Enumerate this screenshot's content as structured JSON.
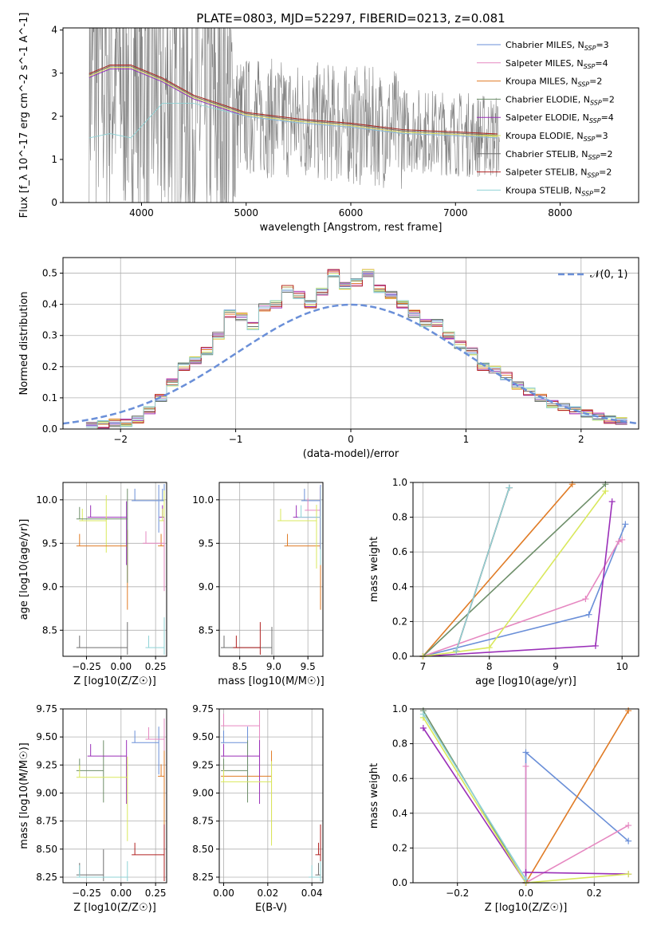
{
  "colors": [
    "#6a8fd8",
    "#e688c1",
    "#e07b25",
    "#6e8f6a",
    "#9a2fb8",
    "#d9e85c",
    "#6f6f6f",
    "#b22222",
    "#8fd3d6"
  ],
  "series_names": [
    "Chabrier MILES, N_SSP=3",
    "Salpeter MILES, N_SSP=4",
    "Kroupa MILES, N_SSP=2",
    "Chabrier ELODIE, N_SSP=2",
    "Salpeter ELODIE, N_SSP=4",
    "Kroupa ELODIE, N_SSP=3",
    "Chabrier STELIB, N_SSP=2",
    "Salpeter STELIB, N_SSP=2",
    "Kroupa STELIB, N_SSP=2"
  ],
  "chart_data": [
    {
      "id": "spectrum",
      "type": "line",
      "title": "PLATE=0803, MJD=52297, FIBERID=0213, z=0.081",
      "xlabel": "wavelength [Angstrom, rest frame]",
      "ylabel": "Flux [f_λ 10^-17 erg cm^-2 s^-1 A^-1]",
      "xlim": [
        3250,
        8750
      ],
      "ylim": [
        0,
        4.05
      ],
      "xticks": [
        4000,
        5000,
        6000,
        7000,
        8000
      ],
      "yticks": [
        0,
        1,
        2,
        3,
        4
      ],
      "legend": "top-right",
      "series": [
        {
          "name": "Chabrier MILES, N_SSP=3",
          "x": [
            3500,
            3700,
            3900,
            4200,
            4500,
            5000,
            5500,
            6000,
            6500,
            7000,
            7400
          ],
          "y": [
            2.9,
            3.1,
            3.1,
            2.8,
            2.4,
            2.0,
            1.85,
            1.75,
            1.6,
            1.55,
            1.5
          ]
        },
        {
          "name": "Kroupa STELIB, N_SSP=2",
          "x": [
            3500,
            3700,
            3900,
            4200,
            4500,
            5000,
            5500,
            6000,
            6500,
            7000,
            7400
          ],
          "y": [
            1.5,
            1.6,
            1.5,
            2.3,
            2.3,
            2.0,
            1.85,
            1.75,
            1.6,
            1.55,
            1.5
          ]
        }
      ]
    },
    {
      "id": "residuals",
      "type": "bar",
      "xlabel": "(data-model)/error",
      "ylabel": "Normed distribution",
      "xlim": [
        -2.5,
        2.5
      ],
      "ylim": [
        0,
        0.55
      ],
      "xticks": [
        -2,
        -1,
        0,
        1,
        2
      ],
      "yticks": [
        0.0,
        0.1,
        0.2,
        0.3,
        0.4,
        0.5
      ],
      "legend": "top-right",
      "reference_curve": "N(0,1)",
      "bin_edges_start": -2.3,
      "bin_width": 0.1,
      "values": [
        0.01,
        0.015,
        0.02,
        0.02,
        0.03,
        0.06,
        0.1,
        0.15,
        0.2,
        0.22,
        0.25,
        0.3,
        0.37,
        0.36,
        0.33,
        0.39,
        0.4,
        0.45,
        0.43,
        0.4,
        0.44,
        0.5,
        0.46,
        0.47,
        0.5,
        0.45,
        0.43,
        0.4,
        0.37,
        0.34,
        0.34,
        0.3,
        0.27,
        0.25,
        0.2,
        0.19,
        0.17,
        0.14,
        0.12,
        0.1,
        0.08,
        0.07,
        0.06,
        0.05,
        0.04,
        0.03,
        0.025
      ]
    },
    {
      "id": "z-age",
      "type": "scatter",
      "xlabel": "Z [log10(Z/Z☉)]",
      "ylabel": "age [log10(age/yr)]",
      "xlim": [
        -0.42,
        0.33
      ],
      "ylim": [
        8.2,
        10.2
      ],
      "xticks": [
        -0.25,
        0.0,
        0.25
      ],
      "xticklabels": [
        "−0.25",
        "0.00",
        "0.25"
      ],
      "yticks": [
        8.5,
        9.0,
        9.5,
        10.0
      ],
      "points": [
        [
          0.1,
          9.99,
          0
        ],
        [
          0.3,
          9.99,
          0
        ],
        [
          -0.3,
          8.3,
          6
        ],
        [
          0.2,
          8.3,
          8
        ],
        [
          -0.22,
          9.8,
          4
        ],
        [
          0.3,
          9.8,
          4
        ],
        [
          -0.28,
          9.76,
          5
        ],
        [
          0.3,
          9.76,
          5
        ],
        [
          -0.3,
          9.47,
          2
        ],
        [
          0.29,
          9.47,
          2
        ],
        [
          0.18,
          9.5,
          1
        ],
        [
          -0.3,
          9.78,
          3
        ]
      ]
    },
    {
      "id": "mass-age",
      "type": "scatter",
      "xlabel": "mass [log10(M/M☉)]",
      "ylabel": "",
      "xlim": [
        8.2,
        9.72
      ],
      "ylim": [
        8.2,
        10.2
      ],
      "xticks": [
        8.5,
        9.0,
        9.5
      ],
      "xticklabels": [
        "8.5",
        "9.0",
        "9.5"
      ],
      "yticks": [
        8.5,
        9.0,
        9.5,
        10.0
      ],
      "points": [
        [
          9.45,
          9.99,
          0
        ],
        [
          9.5,
          9.88,
          1
        ],
        [
          9.2,
          9.47,
          2
        ],
        [
          9.33,
          9.8,
          4
        ],
        [
          9.1,
          9.76,
          5
        ],
        [
          8.27,
          8.3,
          6
        ],
        [
          8.45,
          8.3,
          7
        ],
        [
          9.4,
          9.8,
          8
        ]
      ]
    },
    {
      "id": "age-weight",
      "type": "line",
      "xlabel": "age [log10(age/yr)]",
      "ylabel": "mass weight",
      "xlim": [
        6.85,
        10.25
      ],
      "ylim": [
        0,
        1.0
      ],
      "xticks": [
        7,
        8,
        9,
        10
      ],
      "yticks": [
        0.0,
        0.2,
        0.4,
        0.6,
        0.8,
        1.0
      ],
      "series": [
        {
          "name": "Chabrier MILES",
          "x": [
            7.0,
            9.5,
            10.05
          ],
          "y": [
            0.0,
            0.24,
            0.76
          ]
        },
        {
          "name": "Salpeter MILES",
          "x": [
            7.0,
            9.45,
            9.95,
            10.0
          ],
          "y": [
            0.0,
            0.33,
            0.66,
            0.67
          ]
        },
        {
          "name": "Kroupa MILES",
          "x": [
            7.0,
            9.25
          ],
          "y": [
            0.0,
            0.99
          ]
        },
        {
          "name": "Chabrier ELODIE",
          "x": [
            7.0,
            9.75
          ],
          "y": [
            0.0,
            0.99
          ]
        },
        {
          "name": "Salpeter ELODIE",
          "x": [
            7.0,
            9.6,
            9.85
          ],
          "y": [
            0.0,
            0.06,
            0.89
          ]
        },
        {
          "name": "Kroupa ELODIE",
          "x": [
            7.0,
            8.0,
            9.75
          ],
          "y": [
            0.0,
            0.05,
            0.95
          ]
        },
        {
          "name": "Chabrier STELIB",
          "x": [
            7.5,
            8.3
          ],
          "y": [
            0.03,
            0.97
          ]
        },
        {
          "name": "Salpeter STELIB",
          "x": [
            7.5,
            8.3
          ],
          "y": [
            0.03,
            0.97
          ]
        },
        {
          "name": "Kroupa STELIB",
          "x": [
            7.5,
            8.3
          ],
          "y": [
            0.03,
            0.97
          ]
        }
      ]
    },
    {
      "id": "z-mass",
      "type": "scatter",
      "xlabel": "Z [log10(Z/Z☉)]",
      "ylabel": "mass [log10(M/M☉)]",
      "xlim": [
        -0.42,
        0.33
      ],
      "ylim": [
        8.2,
        9.75
      ],
      "xticks": [
        -0.25,
        0.0,
        0.25
      ],
      "xticklabels": [
        "−0.25",
        "0.00",
        "0.25"
      ],
      "yticks": [
        8.25,
        8.5,
        8.75,
        9.0,
        9.25,
        9.5,
        9.75
      ],
      "points": [
        [
          0.1,
          9.45,
          0
        ],
        [
          0.2,
          9.48,
          1
        ],
        [
          0.29,
          9.15,
          2
        ],
        [
          -0.3,
          9.2,
          3
        ],
        [
          -0.22,
          9.33,
          4
        ],
        [
          -0.3,
          9.14,
          5
        ],
        [
          -0.3,
          8.27,
          6
        ],
        [
          0.1,
          8.45,
          7
        ],
        [
          -0.3,
          8.25,
          8
        ]
      ]
    },
    {
      "id": "ebv-mass",
      "type": "scatter",
      "xlabel": "E(B-V)",
      "ylabel": "",
      "xlim": [
        -0.002,
        0.045
      ],
      "ylim": [
        8.2,
        9.75
      ],
      "xticks": [
        0.0,
        0.02,
        0.04
      ],
      "xticklabels": [
        "0.00",
        "0.02",
        "0.04"
      ],
      "yticks": [
        8.25,
        8.5,
        8.75,
        9.0,
        9.25,
        9.5,
        9.75
      ],
      "points": [
        [
          0.0,
          9.45,
          0
        ],
        [
          0.0,
          9.6,
          1
        ],
        [
          0.0,
          9.15,
          2
        ],
        [
          0.0,
          9.2,
          3
        ],
        [
          0.0,
          9.33,
          4
        ],
        [
          0.0,
          9.1,
          5
        ],
        [
          0.043,
          8.27,
          6
        ],
        [
          0.043,
          8.45,
          7
        ],
        [
          0.04,
          8.25,
          8
        ]
      ]
    },
    {
      "id": "z-weight",
      "type": "line",
      "xlabel": "Z [log10(Z/Z☉)]",
      "ylabel": "mass weight",
      "xlim": [
        -0.33,
        0.33
      ],
      "ylim": [
        0,
        1.0
      ],
      "xticks": [
        -0.2,
        0.0,
        0.2
      ],
      "xticklabels": [
        "−0.2",
        "0.0",
        "0.2"
      ],
      "yticks": [
        0.0,
        0.2,
        0.4,
        0.6,
        0.8,
        1.0
      ],
      "series": [
        {
          "name": "Chabrier MILES",
          "x": [
            0.0,
            0.0,
            0.3
          ],
          "y": [
            0.0,
            0.75,
            0.24
          ]
        },
        {
          "name": "Salpeter MILES",
          "x": [
            0.0,
            0.0,
            0.3
          ],
          "y": [
            0.67,
            0.0,
            0.33
          ]
        },
        {
          "name": "Kroupa MILES",
          "x": [
            0.0,
            0.3
          ],
          "y": [
            0.0,
            0.99
          ]
        },
        {
          "name": "Chabrier ELODIE",
          "x": [
            -0.3,
            0.0
          ],
          "y": [
            0.99,
            0.0
          ]
        },
        {
          "name": "Salpeter ELODIE",
          "x": [
            -0.3,
            0.0,
            0.0,
            0.3
          ],
          "y": [
            0.89,
            0.0,
            0.06,
            0.05
          ]
        },
        {
          "name": "Kroupa ELODIE",
          "x": [
            -0.3,
            0.0,
            0.3
          ],
          "y": [
            0.95,
            0.0,
            0.05
          ]
        },
        {
          "name": "Kroupa STELIB",
          "x": [
            -0.3,
            0.0
          ],
          "y": [
            0.97,
            0.02
          ]
        }
      ]
    }
  ]
}
